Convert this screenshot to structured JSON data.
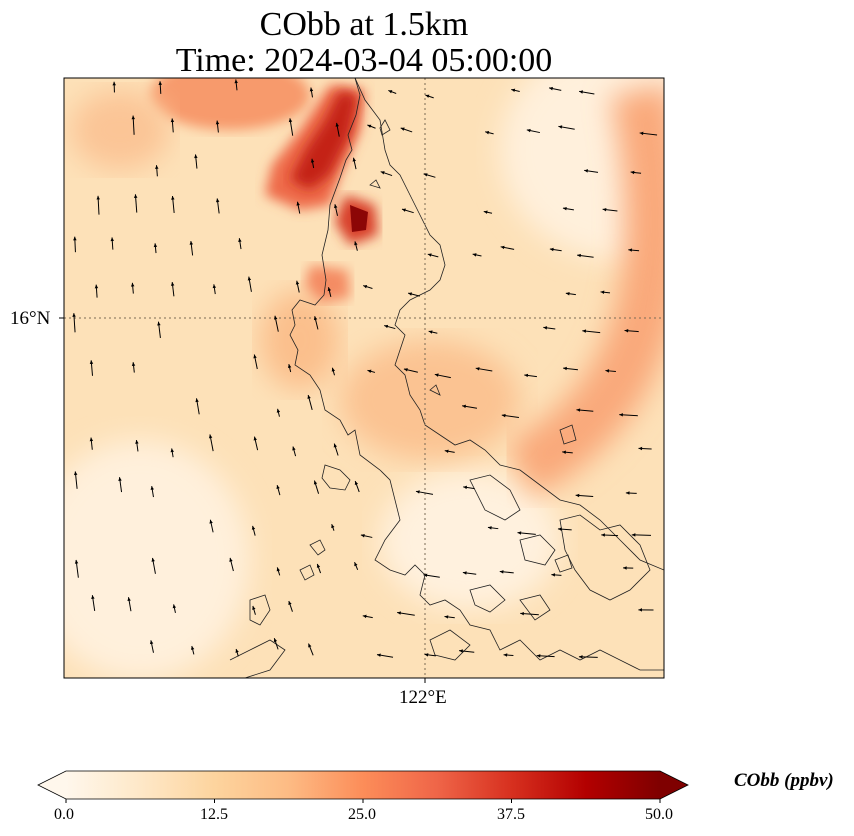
{
  "title_line1": "CObb at 1.5km",
  "title_line2": "Time: 2024-03-04 05:00:00",
  "lat_label": "16°N",
  "lon_label": "122°E",
  "colorbar": {
    "label": "CObb (ppbv)",
    "ticks": [
      "0.0",
      "12.5",
      "25.0",
      "37.5",
      "50.0"
    ],
    "min": 0,
    "max": 50,
    "colors": [
      "#fff7ec",
      "#fee8c8",
      "#fdd49e",
      "#fdbb84",
      "#fc8d59",
      "#ef6548",
      "#d7301f",
      "#b30000",
      "#7f0000"
    ]
  }
}
